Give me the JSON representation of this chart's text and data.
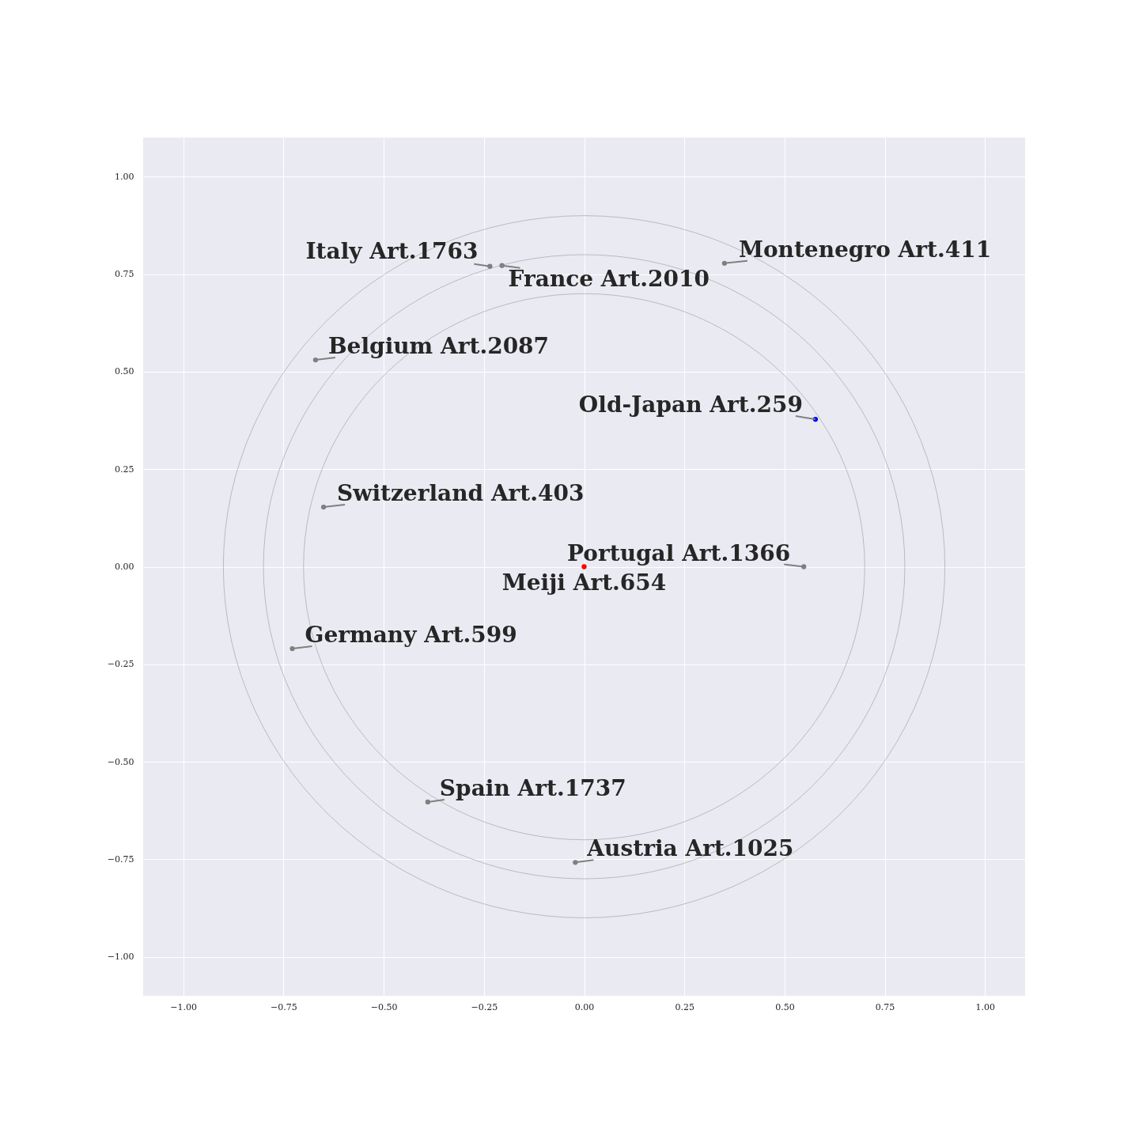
{
  "chart_data": {
    "type": "scatter",
    "xlim": [
      -1.1,
      1.1
    ],
    "ylim": [
      -1.1,
      1.1
    ],
    "xticks": [
      {
        "value": -1,
        "label": "−1.00"
      },
      {
        "value": -0.75,
        "label": "−0.75"
      },
      {
        "value": -0.5,
        "label": "−0.50"
      },
      {
        "value": -0.25,
        "label": "−0.25"
      },
      {
        "value": 0,
        "label": "0.00"
      },
      {
        "value": 0.25,
        "label": "0.25"
      },
      {
        "value": 0.5,
        "label": "0.50"
      },
      {
        "value": 0.75,
        "label": "0.75"
      },
      {
        "value": 1,
        "label": "1.00"
      }
    ],
    "yticks": [
      {
        "value": -1,
        "label": "−1.00"
      },
      {
        "value": -0.75,
        "label": "−0.75"
      },
      {
        "value": -0.5,
        "label": "−0.50"
      },
      {
        "value": -0.25,
        "label": "−0.25"
      },
      {
        "value": 0,
        "label": "0.00"
      },
      {
        "value": 0.25,
        "label": "0.25"
      },
      {
        "value": 0.5,
        "label": "0.50"
      },
      {
        "value": 0.75,
        "label": "0.75"
      },
      {
        "value": 1,
        "label": "1.00"
      }
    ],
    "grid": true,
    "marker": "circle",
    "series": [
      {
        "x": [
          -0.235,
          -0.205,
          0.35,
          -0.67,
          0.577,
          -0.65,
          0.548,
          0,
          -0.728,
          -0.39,
          -0.022
        ],
        "values": [
          0.77,
          0.772,
          0.778,
          0.53,
          0.378,
          0.153,
          0,
          0,
          -0.21,
          -0.603,
          -0.758
        ],
        "colors": [
          "#808080",
          "#808080",
          "#808080",
          "#808080",
          "#0000ff",
          "#808080",
          "#808080",
          "#ff0000",
          "#808080",
          "#808080",
          "#808080"
        ]
      }
    ],
    "annotations": [
      {
        "text": "Italy Art.1763",
        "x": -0.235,
        "y": 0.77
      },
      {
        "text": "France Art.2010",
        "x": -0.205,
        "y": 0.772
      },
      {
        "text": "Montenegro Art.411",
        "x": 0.35,
        "y": 0.778
      },
      {
        "text": "Belgium Art.2087",
        "x": -0.67,
        "y": 0.53
      },
      {
        "text": "Old-Japan Art.259",
        "x": 0.577,
        "y": 0.378
      },
      {
        "text": "Switzerland Art.403",
        "x": -0.65,
        "y": 0.153
      },
      {
        "text": "Portugal Art.1366",
        "x": 0.548,
        "y": 0
      },
      {
        "text": "Meiji Art.654",
        "x": 0,
        "y": 0
      },
      {
        "text": "Germany Art.599",
        "x": -0.728,
        "y": -0.21
      },
      {
        "text": "Spain Art.1737",
        "x": -0.39,
        "y": -0.603
      },
      {
        "text": "Austria Art.1025",
        "x": -0.022,
        "y": -0.758
      }
    ]
  }
}
